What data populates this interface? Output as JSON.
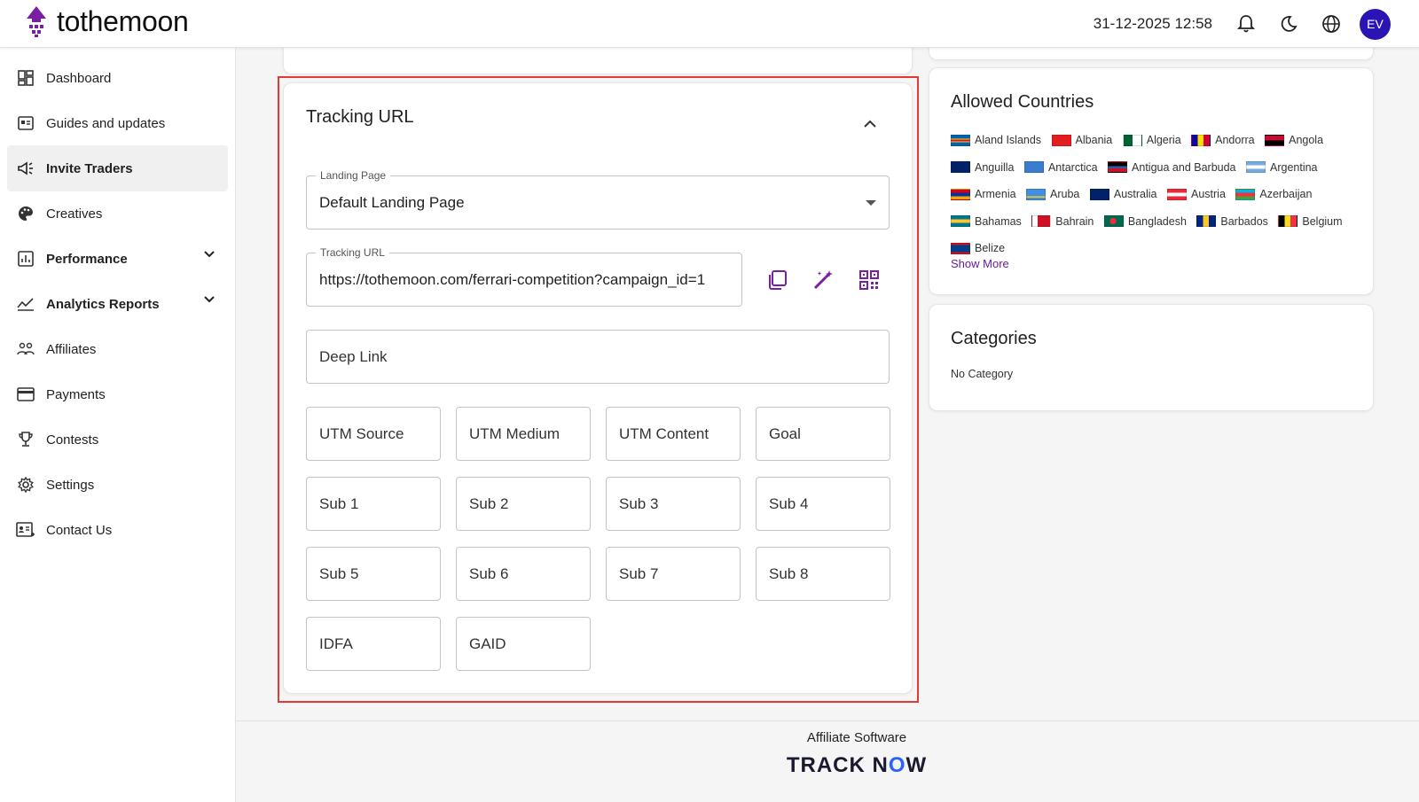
{
  "header": {
    "brand": "tothemoon",
    "datetime": "31-12-2025 12:58",
    "avatar_initials": "EV",
    "avatar_color": "#2a14b4",
    "icons": [
      "bell-icon",
      "moon-icon",
      "globe-icon"
    ]
  },
  "sidebar": {
    "items": [
      {
        "label": "Dashboard",
        "icon": "dashboard-icon"
      },
      {
        "label": "Guides and updates",
        "icon": "newspaper-icon"
      },
      {
        "label": "Invite Traders",
        "icon": "megaphone-icon",
        "active": true
      },
      {
        "label": "Creatives",
        "icon": "palette-icon"
      },
      {
        "label": "Performance",
        "icon": "chart-icon",
        "expandable": true
      },
      {
        "label": "Analytics Reports",
        "icon": "trend-icon",
        "expandable": true
      },
      {
        "label": "Affiliates",
        "icon": "people-icon"
      },
      {
        "label": "Payments",
        "icon": "card-icon"
      },
      {
        "label": "Contests",
        "icon": "trophy-icon"
      },
      {
        "label": "Settings",
        "icon": "gear-icon"
      },
      {
        "label": "Contact Us",
        "icon": "contact-icon"
      }
    ]
  },
  "tracking": {
    "title": "Tracking URL",
    "landing_page": {
      "label": "Landing Page",
      "value": "Default Landing Page"
    },
    "tracking_url": {
      "label": "Tracking URL",
      "value": "https://tothemoon.com/ferrari-competition?campaign_id=1"
    },
    "deep_link": "Deep Link",
    "params": [
      "UTM Source",
      "UTM Medium",
      "UTM Content",
      "Goal",
      "Sub 1",
      "Sub 2",
      "Sub 3",
      "Sub 4",
      "Sub 5",
      "Sub 6",
      "Sub 7",
      "Sub 8",
      "IDFA",
      "GAID"
    ]
  },
  "allowed_countries": {
    "title": "Allowed Countries",
    "countries": [
      "Aland Islands",
      "Albania",
      "Algeria",
      "Andorra",
      "Angola",
      "Anguilla",
      "Antarctica",
      "Antigua and Barbuda",
      "Argentina",
      "Armenia",
      "Aruba",
      "Australia",
      "Austria",
      "Azerbaijan",
      "Bahamas",
      "Bahrain",
      "Bangladesh",
      "Barbados",
      "Belgium",
      "Belize"
    ],
    "show_more": "Show More"
  },
  "categories": {
    "title": "Categories",
    "value": "No Category"
  },
  "footer": {
    "text": "Affiliate Software",
    "logo_a": "TRACK ",
    "logo_n": "N",
    "logo_o": "O",
    "logo_w": "W"
  }
}
